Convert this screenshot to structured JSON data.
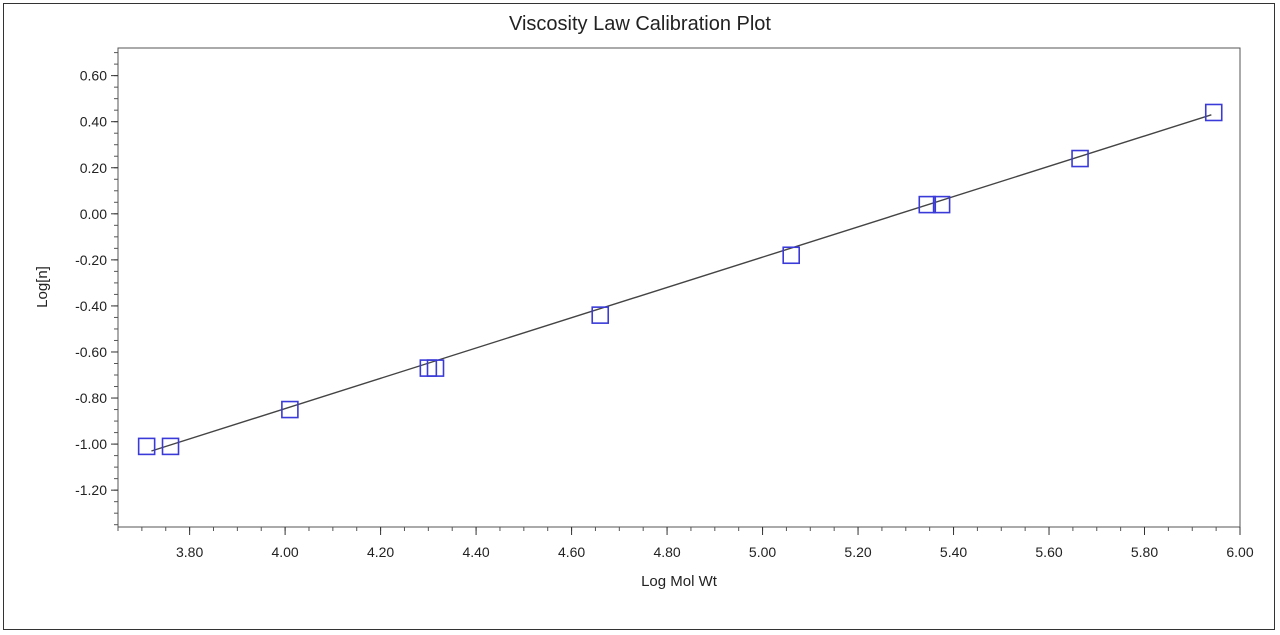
{
  "chart_data": {
    "type": "scatter",
    "title": "Viscosity Law Calibration Plot",
    "xlabel": "Log Mol Wt",
    "ylabel": "Log[n]",
    "xlim": [
      3.65,
      6.0
    ],
    "ylim": [
      -1.36,
      0.72
    ],
    "x_ticks": [
      "3.80",
      "4.00",
      "4.20",
      "4.40",
      "4.60",
      "4.80",
      "5.00",
      "5.20",
      "5.40",
      "5.60",
      "5.80",
      "6.00"
    ],
    "x_tick_values": [
      3.8,
      4.0,
      4.2,
      4.4,
      4.6,
      4.8,
      5.0,
      5.2,
      5.4,
      5.6,
      5.8,
      6.0
    ],
    "y_ticks": [
      "0.60",
      "0.40",
      "0.20",
      "0.00",
      "-0.20",
      "-0.40",
      "-0.60",
      "-0.80",
      "-1.00",
      "-1.20"
    ],
    "y_tick_values": [
      0.6,
      0.4,
      0.2,
      0.0,
      -0.2,
      -0.4,
      -0.6,
      -0.8,
      -1.0,
      -1.2
    ],
    "grid": false,
    "series": [
      {
        "marker": "square",
        "color": "#3a3ad8",
        "points": [
          {
            "x": 3.71,
            "y": -1.01
          },
          {
            "x": 3.76,
            "y": -1.01
          },
          {
            "x": 4.01,
            "y": -0.85
          },
          {
            "x": 4.3,
            "y": -0.67
          },
          {
            "x": 4.315,
            "y": -0.67
          },
          {
            "x": 4.66,
            "y": -0.44
          },
          {
            "x": 5.06,
            "y": -0.18
          },
          {
            "x": 5.345,
            "y": 0.04
          },
          {
            "x": 5.375,
            "y": 0.04
          },
          {
            "x": 5.665,
            "y": 0.24
          },
          {
            "x": 5.945,
            "y": 0.44
          }
        ]
      }
    ],
    "fit_line": {
      "color": "#444444",
      "points": [
        {
          "x": 3.72,
          "y": -1.03
        },
        {
          "x": 5.94,
          "y": 0.43
        }
      ]
    }
  }
}
